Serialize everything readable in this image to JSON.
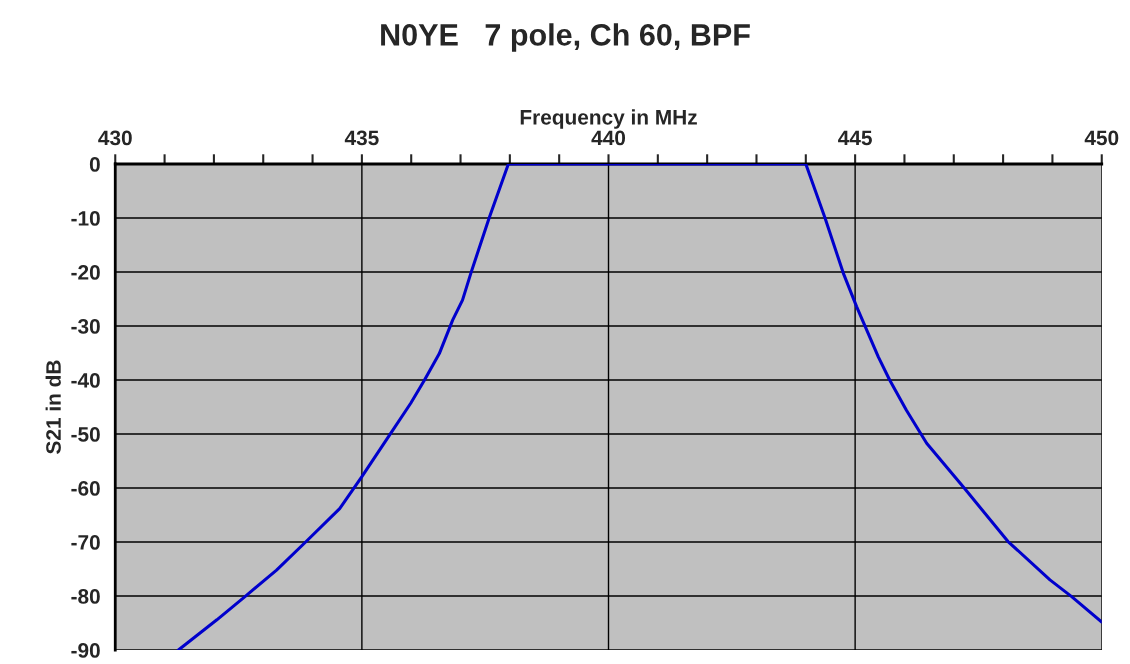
{
  "chart_data": {
    "type": "line",
    "title": "N0YE   7 pole, Ch 60, BPF",
    "xlabel": "Frequency in MHz",
    "ylabel": "S21 in dB",
    "series": [
      {
        "color": "#0000cc",
        "x": [
          431.28,
          432.06,
          432.63,
          433.27,
          433.87,
          434.55,
          435.0,
          435.56,
          435.99,
          436.27,
          436.57,
          436.84,
          437.04,
          437.21,
          437.58,
          437.97,
          444.0,
          444.39,
          444.76,
          445.03,
          445.47,
          445.7,
          446.04,
          446.45,
          447.22,
          448.1,
          448.95,
          449.39,
          450.0
        ],
        "values": [
          -90,
          -84.4,
          -80.1,
          -75.2,
          -69.9,
          -63.8,
          -57.9,
          -50.2,
          -44.3,
          -40,
          -35.1,
          -28.9,
          -25.2,
          -20.2,
          -10,
          0,
          0,
          -10,
          -20.2,
          -26.4,
          -35.7,
          -40,
          -45.6,
          -51.7,
          -60.1,
          -69.9,
          -77,
          -80.1,
          -84.8
        ]
      }
    ],
    "xlim": [
      430,
      450
    ],
    "xticks": [
      430,
      {
        "value": 431,
        "label": null
      },
      {
        "value": 432,
        "label": null
      },
      {
        "value": 433,
        "label": null
      },
      {
        "value": 434,
        "label": null
      },
      435,
      {
        "value": 436,
        "label": null
      },
      {
        "value": 437,
        "label": null
      },
      {
        "value": 438,
        "label": null
      },
      {
        "value": 439,
        "label": null
      },
      440,
      {
        "value": 441,
        "label": null
      },
      {
        "value": 442,
        "label": null
      },
      {
        "value": 443,
        "label": null
      },
      {
        "value": 444,
        "label": null
      },
      445,
      {
        "value": 446,
        "label": null
      },
      {
        "value": 447,
        "label": null
      },
      {
        "value": 448,
        "label": null
      },
      {
        "value": 449,
        "label": null
      },
      450
    ],
    "ylim": [
      -90,
      0
    ],
    "yticks": [
      0,
      -10,
      -20,
      -30,
      -40,
      -50,
      -60,
      -70,
      -80,
      -90
    ],
    "grid": true,
    "marker": "none",
    "line_style": "solid"
  }
}
